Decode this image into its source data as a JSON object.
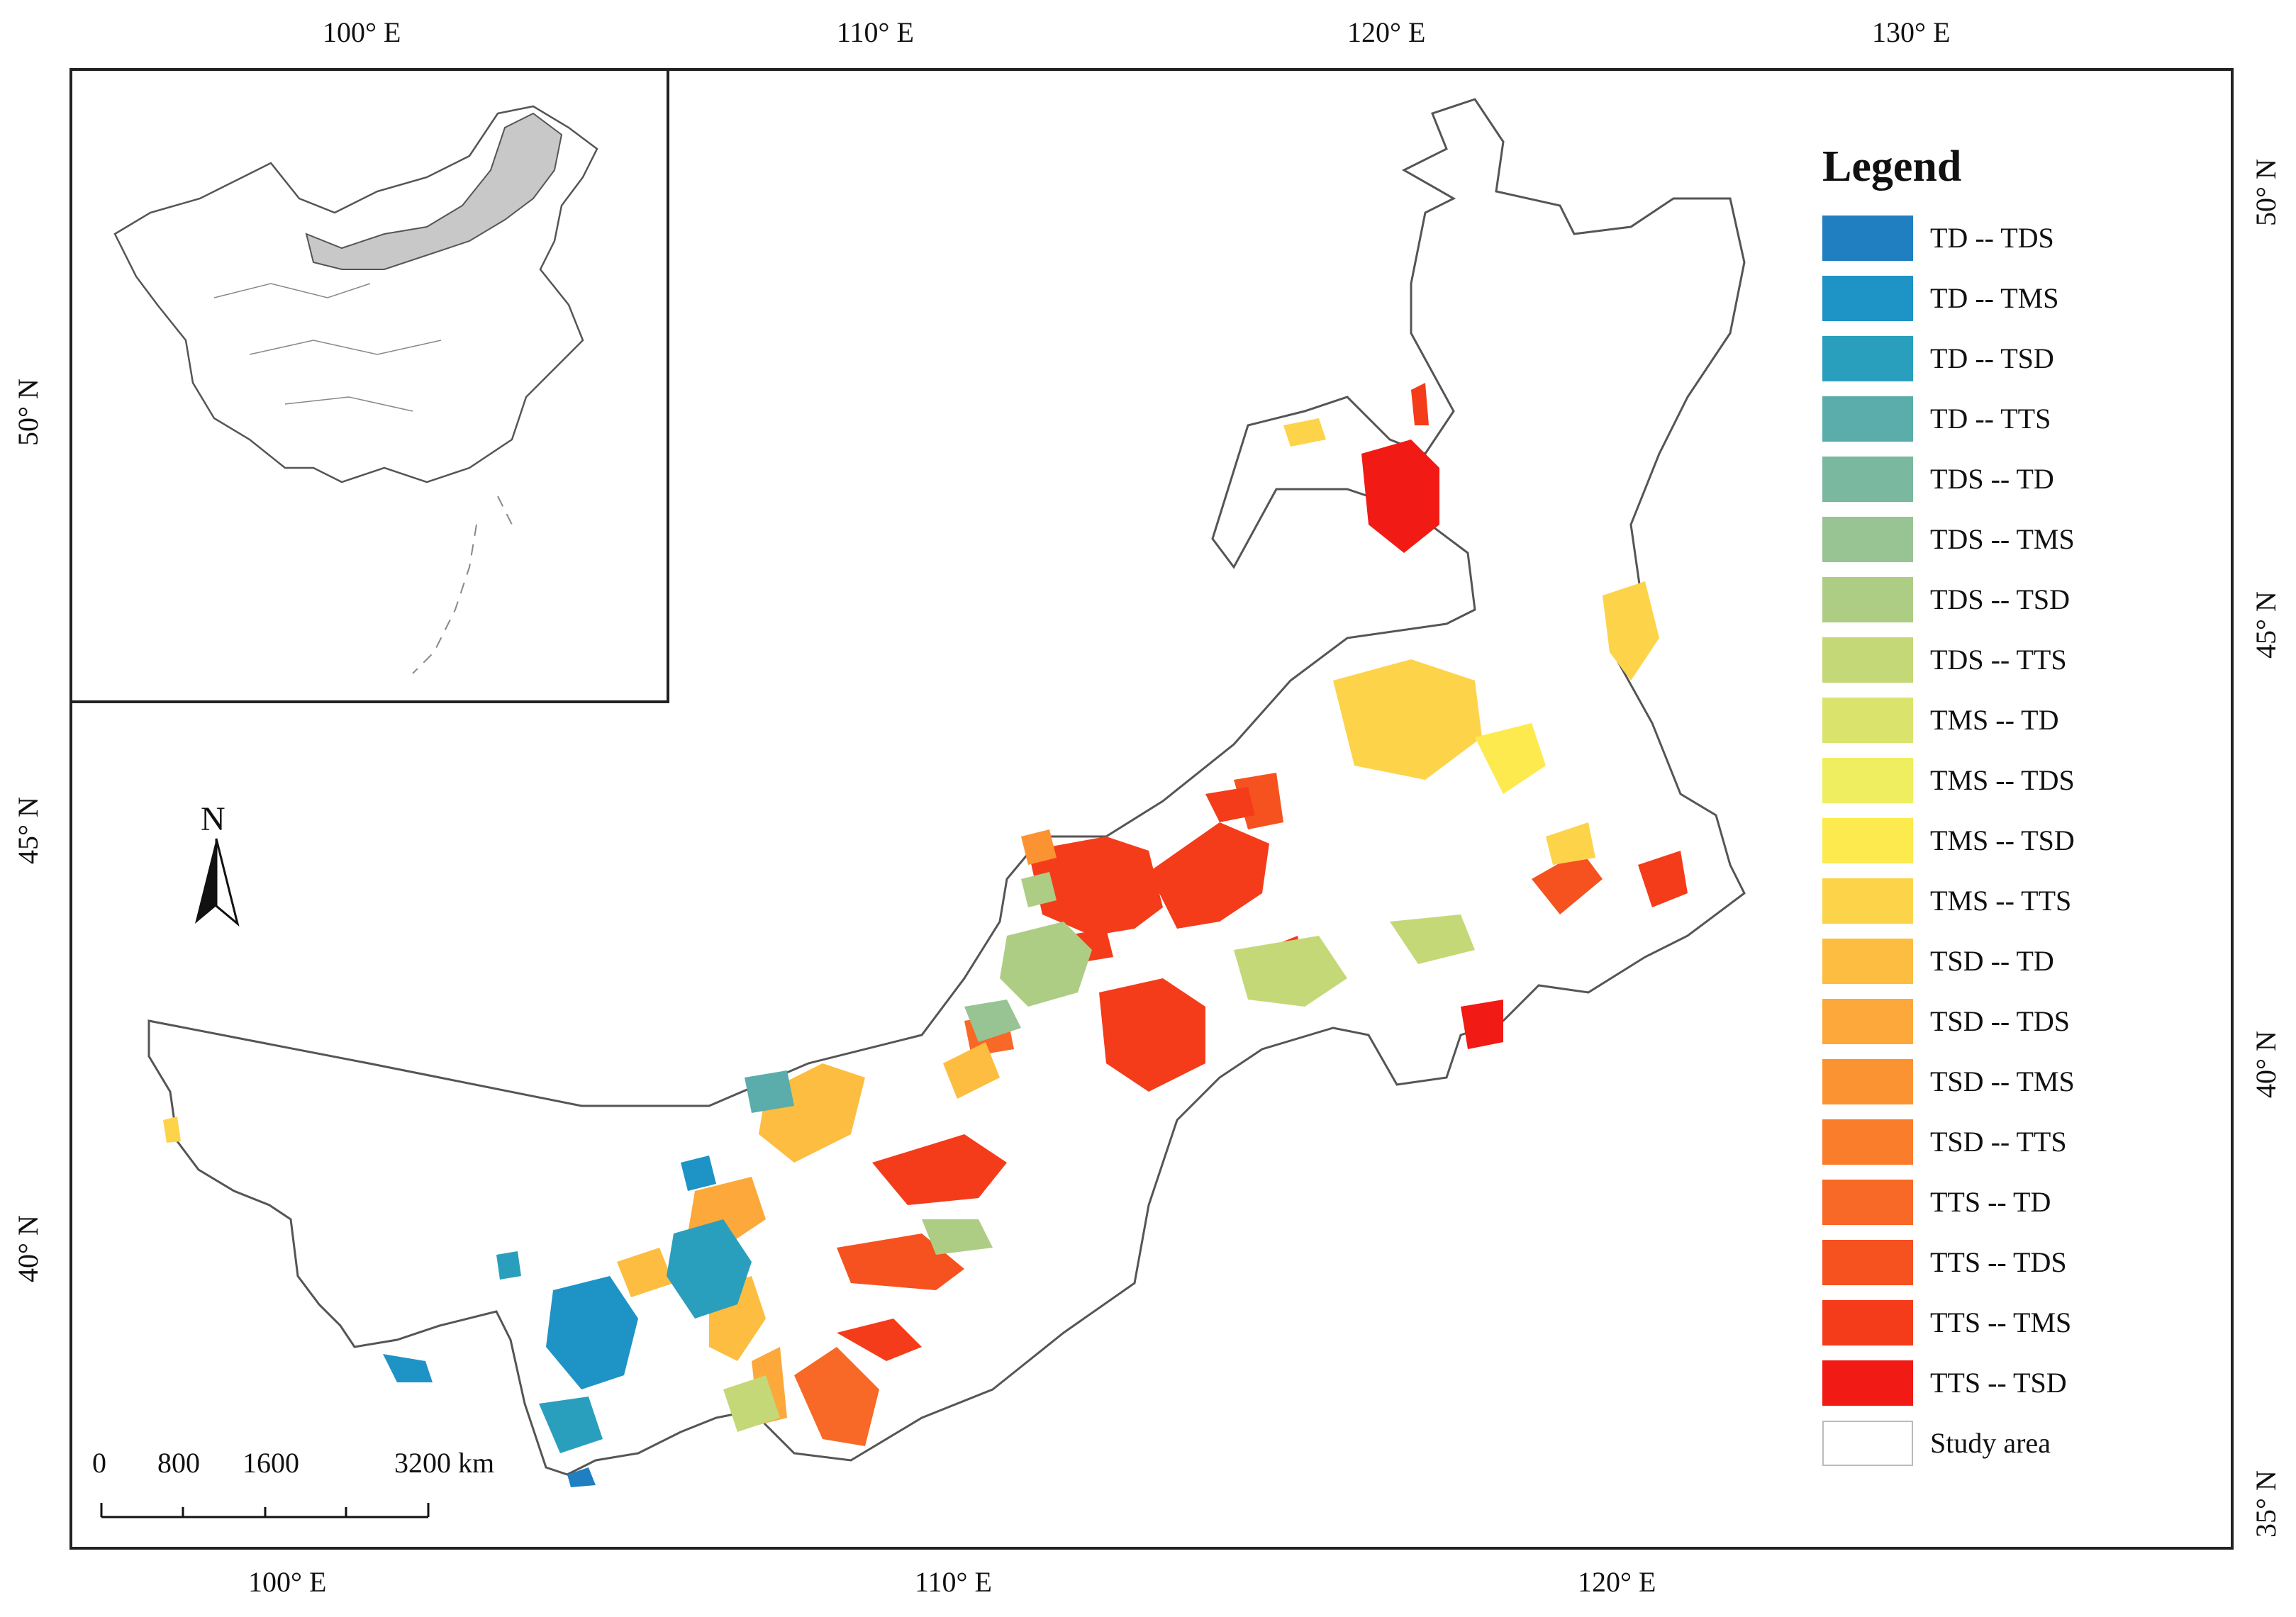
{
  "top_ticks": [
    "100° E",
    "110° E",
    "120° E",
    "130° E"
  ],
  "bottom_ticks": [
    "100° E",
    "110° E",
    "120° E"
  ],
  "left_ticks": [
    "50° N",
    "45° N",
    "40° N"
  ],
  "right_ticks": [
    "50° N",
    "45° N",
    "40° N",
    "35° N"
  ],
  "north_arrow": {
    "label": "N",
    "icon": "north-arrow-icon"
  },
  "scale_bar": {
    "labels": [
      "0",
      "800",
      "1600"
    ],
    "end_label": "3200 km"
  },
  "legend": {
    "title": "Legend",
    "items": [
      {
        "label": "TD -- TDS",
        "color": "#1f7fc1"
      },
      {
        "label": "TD -- TMS",
        "color": "#1e93c6"
      },
      {
        "label": "TD -- TSD",
        "color": "#2a9fbd"
      },
      {
        "label": "TD -- TTS",
        "color": "#5aadaa"
      },
      {
        "label": "TDS -- TD",
        "color": "#7ab8a0"
      },
      {
        "label": "TDS -- TMS",
        "color": "#98c392"
      },
      {
        "label": "TDS -- TSD",
        "color": "#aecd84"
      },
      {
        "label": "TDS -- TTS",
        "color": "#c4d878"
      },
      {
        "label": "TMS -- TD",
        "color": "#dae46c"
      },
      {
        "label": "TMS -- TDS",
        "color": "#eeee60"
      },
      {
        "label": "TMS -- TSD",
        "color": "#fdea4e"
      },
      {
        "label": "TMS -- TTS",
        "color": "#fdd34a"
      },
      {
        "label": "TSD -- TD",
        "color": "#fdbd40"
      },
      {
        "label": "TSD -- TDS",
        "color": "#fca83a"
      },
      {
        "label": "TSD -- TMS",
        "color": "#fb9332"
      },
      {
        "label": "TSD -- TTS",
        "color": "#fa7d2c"
      },
      {
        "label": "TTS -- TD",
        "color": "#f86826"
      },
      {
        "label": "TTS -- TDS",
        "color": "#f65220"
      },
      {
        "label": "TTS -- TMS",
        "color": "#f43c1a"
      },
      {
        "label": "TTS -- TSD",
        "color": "#f21a14"
      },
      {
        "label": "Study area",
        "color": "#ffffff"
      }
    ]
  },
  "inset": {
    "highlight_color": "#c8c8c8"
  }
}
